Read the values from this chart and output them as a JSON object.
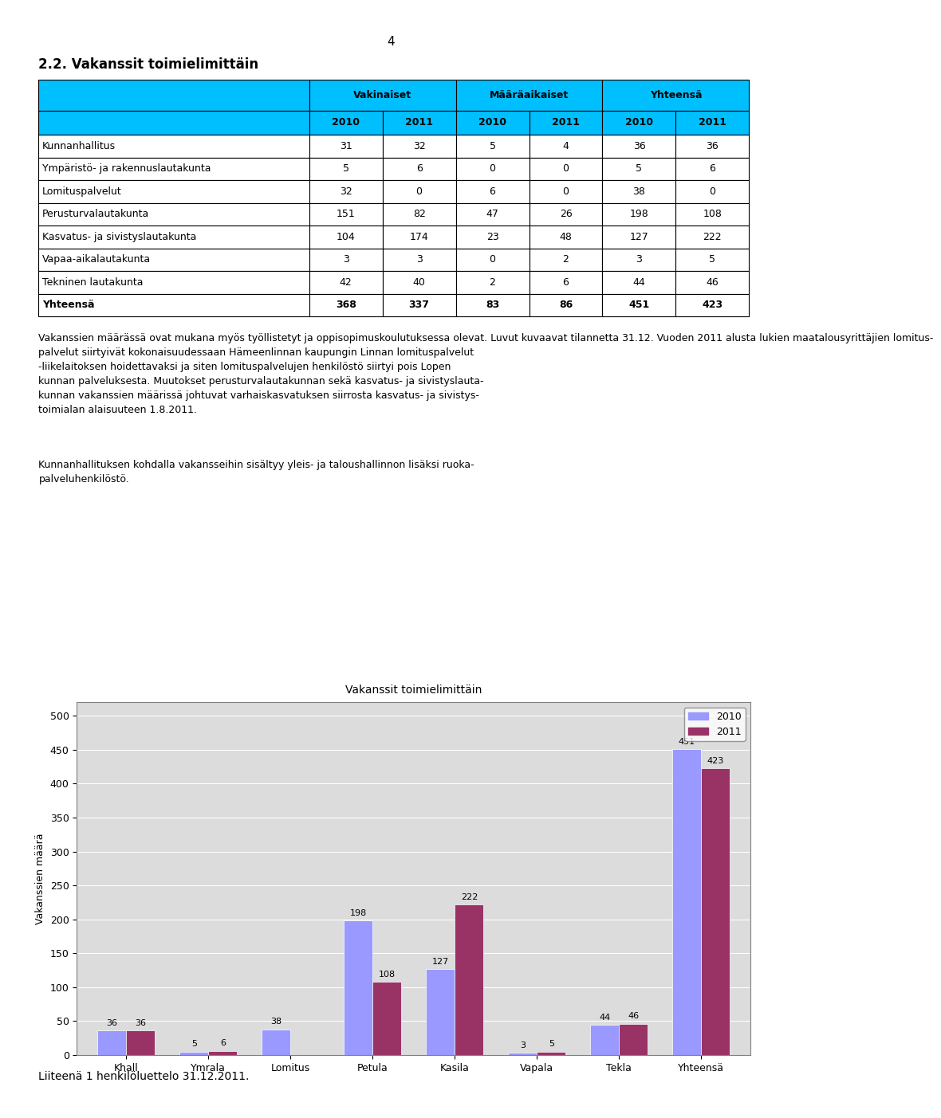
{
  "page_number": "4",
  "section_title": "2.2. Vakanssit toimielimittäin",
  "table_header_bg": "#00BFFF",
  "table_headers": [
    "",
    "Vakinaiset",
    "Määräaikaiset",
    "Yhteensä"
  ],
  "table_subheaders": [
    "",
    "2010",
    "2011",
    "2010",
    "2011",
    "2010",
    "2011"
  ],
  "table_rows": [
    [
      "Kunnanhallitus",
      31,
      32,
      5,
      4,
      36,
      36
    ],
    [
      "Ympäristö- ja rakennuslautakunta",
      5,
      6,
      0,
      0,
      5,
      6
    ],
    [
      "Lomituspalvelut",
      32,
      0,
      6,
      0,
      38,
      0
    ],
    [
      "Perusturvalautakunta",
      151,
      82,
      47,
      26,
      198,
      108
    ],
    [
      "Kasvatus- ja sivistyslautakunta",
      104,
      174,
      23,
      48,
      127,
      222
    ],
    [
      "Vapaa-aikalautakunta",
      3,
      3,
      0,
      2,
      3,
      5
    ],
    [
      "Tekninen lautakunta",
      42,
      40,
      2,
      6,
      44,
      46
    ],
    [
      "Yhteensä",
      368,
      337,
      83,
      86,
      451,
      423
    ]
  ],
  "footnote_text": "Vakanssien määrässä ovat mukana myös työllistetyt ja oppisopimuskoulutuksessa olevat. Luvut kuvaavat tilannetta 31.12. Vuoden 2011 alusta lukien maatalousyrittäjien lomituspalvelut siirtyivät kokonaisuudessaan Hämeenlinnan kaupungin Linnan lomituspalvelut -liikelaitoksen hoidettavaksi ja siten lomituspalvelujen henkilöstö siirtyi pois Lopen kunnan palveluksesta. Muutokset perusturvalautakunnan sekä kasvatus- ja sivistyslautakunnan vakanssien määrissä johtuvat varhaiskasvatuksen siirrosta kasvatus- ja sivistystoimialan alaisuuteen 1.8.2011.",
  "footnote2_text": "Kunnanhallituksen kohdalla vakansseihin sisältyy yleis- ja taloushallinnon lisäksi ruokapalveluhenkilöstö.",
  "chart_title": "Vakanssit toimielimittäin",
  "chart_categories": [
    "Khall",
    "Ymrala",
    "Lomitus",
    "Petula",
    "Kasila",
    "Vapala",
    "Tekla",
    "Yhteensä"
  ],
  "chart_values_2010": [
    36,
    5,
    38,
    198,
    127,
    3,
    44,
    451
  ],
  "chart_values_2011": [
    36,
    6,
    0,
    108,
    222,
    5,
    46,
    423
  ],
  "bar_color_2010": "#9999FF",
  "bar_color_2011": "#993366",
  "chart_ylabel": "Vakanssien määrä",
  "chart_ylim": [
    0,
    520
  ],
  "chart_yticks": [
    0,
    50,
    100,
    150,
    200,
    250,
    300,
    350,
    400,
    450,
    500
  ],
  "bottom_text": "Liiteenä 1 henkilöluettelo 31.12.2011.",
  "bg_color": "#FFFFFF"
}
